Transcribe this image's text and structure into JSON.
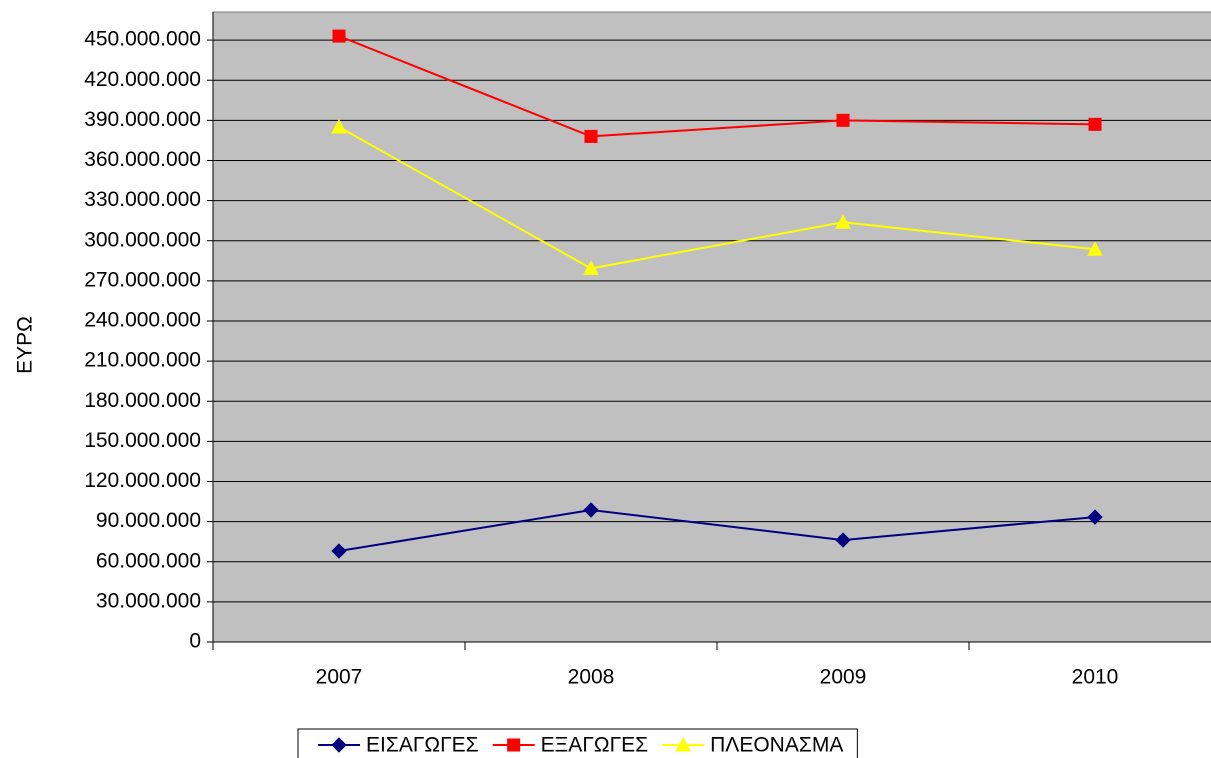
{
  "chart_data": {
    "type": "line",
    "y_label": "ΕΥΡΩ",
    "categories": [
      "2007",
      "2008",
      "2009",
      "2010"
    ],
    "series": [
      {
        "name": "ΕΙΣΑΓΩΓΕΣ",
        "color": "#000080",
        "marker": "diamond",
        "values": [
          68000000,
          98700000,
          76200000,
          93400000
        ]
      },
      {
        "name": "ΕΞΑΓΩΓΕΣ",
        "color": "#ff0000",
        "marker": "square",
        "values": [
          453000000,
          378000000,
          390000000,
          387000000
        ]
      },
      {
        "name": "ΠΛΕΟΝΑΣΜΑ",
        "color": "#ffff00",
        "marker": "triangle",
        "values": [
          385000000,
          279300000,
          313800000,
          293600000
        ]
      }
    ],
    "ylim": [
      0,
      471000000
    ],
    "yticks": [
      0,
      {
        "value": 30000000,
        "label": "30.000.000"
      },
      {
        "value": 60000000,
        "label": "60.000.000"
      },
      {
        "value": 90000000,
        "label": "90.000.000"
      },
      {
        "value": 120000000,
        "label": "120.000.000"
      },
      {
        "value": 150000000,
        "label": "150.000.000"
      },
      {
        "value": 180000000,
        "label": "180.000.000"
      },
      {
        "value": 210000000,
        "label": "210.000.000"
      },
      {
        "value": 240000000,
        "label": "240.000.000"
      },
      {
        "value": 270000000,
        "label": "270.000.000"
      },
      {
        "value": 300000000,
        "label": "300.000.000"
      },
      {
        "value": 330000000,
        "label": "330.000.000"
      },
      {
        "value": 360000000,
        "label": "360.000.000"
      },
      {
        "value": 390000000,
        "label": "390.000.000"
      },
      {
        "value": 420000000,
        "label": "420.000.000"
      },
      {
        "value": 450000000,
        "label": "450.000.000"
      }
    ],
    "grid": true,
    "legend": "bottom",
    "plot_background": "#c0c0c0"
  }
}
